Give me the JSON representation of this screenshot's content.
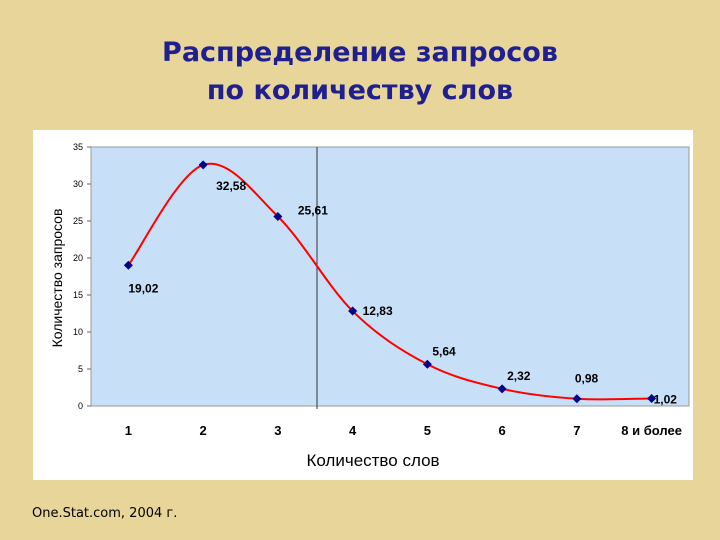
{
  "slide": {
    "title_line1": "Распределение запросов",
    "title_line2": "по количеству слов",
    "source": "One.Stat.com, 2004 г."
  },
  "colors": {
    "background": "#e8d59a",
    "title": "#1f1f8f",
    "plot_area": "#c7dff7",
    "curve": "#ff0000",
    "marker": "#00008b"
  },
  "chart_data": {
    "type": "line",
    "title": "",
    "xlabel": "Количество слов",
    "ylabel": "Количество запросов",
    "categories": [
      "1",
      "2",
      "3",
      "4",
      "5",
      "6",
      "7",
      "8 и более"
    ],
    "values": [
      19.02,
      32.58,
      25.61,
      12.83,
      5.64,
      2.32,
      0.98,
      1.02
    ],
    "data_labels": [
      "19,02",
      "32,58",
      "25,61",
      "12,83",
      "5,64",
      "2,32",
      "0,98",
      "1,02"
    ],
    "yticks": [
      "0",
      "5",
      "10",
      "15",
      "20",
      "25",
      "30",
      "35"
    ],
    "ylim": [
      0,
      35
    ],
    "smoothed": true,
    "grid": false,
    "legend": "none"
  }
}
